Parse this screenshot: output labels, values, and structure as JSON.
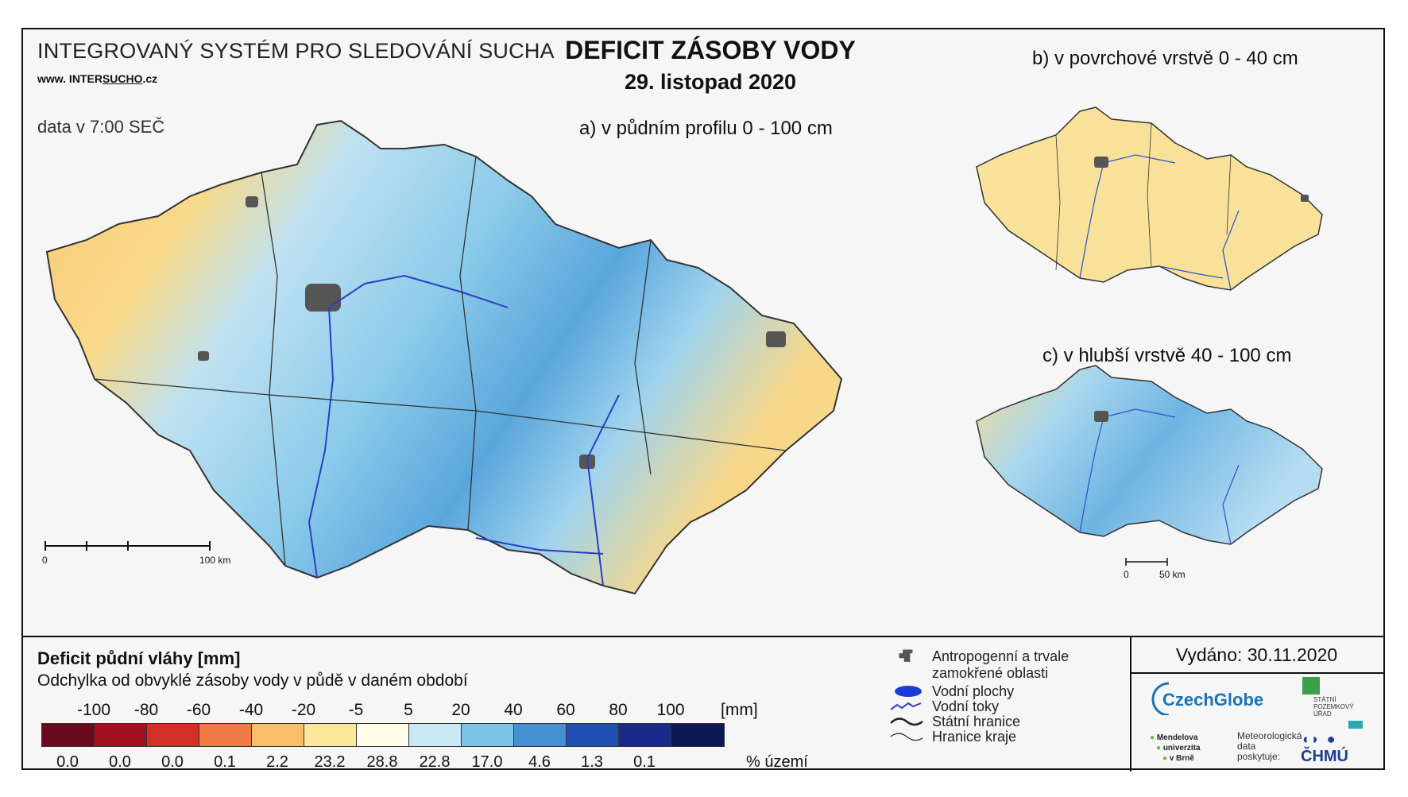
{
  "header": {
    "system": "INTEGROVANÝ SYSTÉM PRO SLEDOVÁNÍ SUCHA",
    "www_prefix": "www. INTER",
    "www_mid": "SUCHO",
    "www_suffix": ".cz",
    "data_time": "data v 7:00 SEČ",
    "title": "DEFICIT ZÁSOBY VODY",
    "date": "29. listopad 2020"
  },
  "maps": {
    "a_label": "a) v půdním profilu 0 - 100 cm",
    "b_label": "b) v povrchové vrstvě 0 - 40 cm",
    "c_label": "c) v hlubší vrstvě 40 - 100 cm",
    "scale_a_start": "0",
    "scale_a_end": "100 km",
    "scale_bc_start": "0",
    "scale_bc_end": "50 km"
  },
  "legend": {
    "title": "Deficit půdní vláhy  [mm]",
    "subtitle": "Odchylka od obvyklé zásoby vody v půdě v daném období",
    "ticks": [
      "-100",
      "-80",
      "-60",
      "-40",
      "-20",
      "-5",
      "5",
      "20",
      "40",
      "60",
      "80",
      "100"
    ],
    "unit": "[mm]",
    "colors": [
      "#6b0a1e",
      "#a3101f",
      "#d32f27",
      "#f07a45",
      "#f9bf6b",
      "#fbe79a",
      "#fffde6",
      "#c8e8f4",
      "#7cc4e6",
      "#4590d2",
      "#1f4fb0",
      "#1a2a8a",
      "#0b1a55"
    ],
    "percent": [
      "0.0",
      "0.0",
      "0.0",
      "0.1",
      "2.2",
      "23.2",
      "28.8",
      "22.8",
      "17.0",
      "4.6",
      "1.3",
      "0.1"
    ],
    "percent_unit": "% území",
    "symbols": [
      {
        "icon": "urban-area-icon",
        "label1": "Antropogenní a trvale",
        "label2": "zamokřené oblasti"
      },
      {
        "icon": "water-body-icon",
        "label1": "Vodní plochy",
        "label2": ""
      },
      {
        "icon": "river-icon",
        "label1": "Vodní toky",
        "label2": ""
      },
      {
        "icon": "state-border-icon",
        "label1": "Státní hranice",
        "label2": ""
      },
      {
        "icon": "region-border-icon",
        "label1": "Hranice kraje",
        "label2": ""
      }
    ]
  },
  "footer": {
    "issued": "Vydáno: 30.11.2020",
    "czechglobe": "CzechGlobe",
    "spu": "STÁTNÍ POZEMKOVÝ ÚŘAD",
    "mendelu1": "Mendelova",
    "mendelu2": "univerzita",
    "mendelu3": "v Brně",
    "met1": "Meteorologická",
    "met2": "data",
    "met3": "poskytuje:",
    "chmu": "ČHMÚ"
  }
}
